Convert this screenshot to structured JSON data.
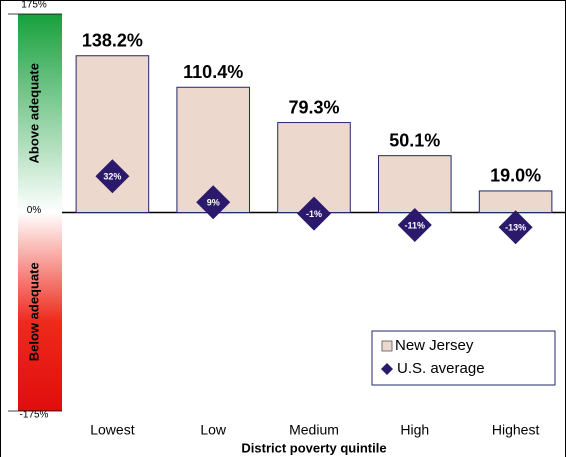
{
  "chart_data": {
    "type": "bar",
    "categories": [
      "Lowest",
      "Low",
      "Medium",
      "High",
      "Highest"
    ],
    "x_label": "District poverty quintile",
    "band_labels": [
      "Above adequate",
      "Below adequate"
    ],
    "series": [
      {
        "name": "New Jersey",
        "color": "#ecd8cd",
        "values": [
          138.2,
          110.4,
          79.3,
          50.1,
          19.0
        ],
        "value_labels": [
          "138.2%",
          "110.4%",
          "79.3%",
          "50.1%",
          "19.0%"
        ]
      },
      {
        "name": "U.S. average",
        "color": "#2b1a6b",
        "values": [
          32,
          9,
          -1,
          -11,
          -13
        ],
        "value_labels": [
          "32%",
          "9%",
          "-1%",
          "-11%",
          "-13%"
        ]
      }
    ],
    "ylim": [
      -175,
      175
    ],
    "yticks": [
      {
        "value": 175,
        "label": "175%"
      },
      {
        "value": 0,
        "label": "0%"
      },
      {
        "value": -175,
        "label": "-175%"
      }
    ],
    "legend": "lower right"
  }
}
